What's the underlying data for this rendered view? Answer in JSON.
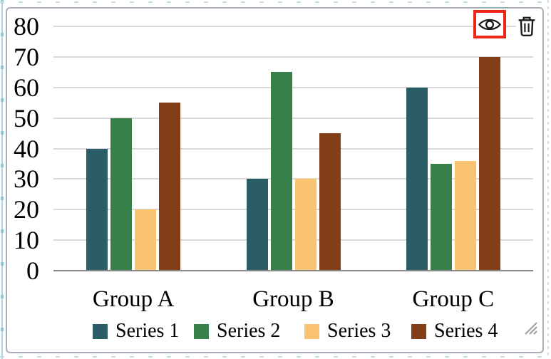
{
  "widget": {
    "name": "grouped-bar-chart",
    "toolbar": {
      "visibility_button": {
        "icon": "eye-icon",
        "highlighted": true,
        "highlight_color": "#ee2717"
      },
      "delete_button": {
        "icon": "trash-icon"
      }
    },
    "resize_handle": {
      "icon": "resize-grip-icon"
    }
  },
  "chart_data": {
    "type": "bar",
    "categories": [
      "Group A",
      "Group B",
      "Group C"
    ],
    "series": [
      {
        "name": "Series 1",
        "color": "#2b5d67",
        "values": [
          40,
          30,
          60
        ]
      },
      {
        "name": "Series 2",
        "color": "#37804a",
        "values": [
          50,
          65,
          35
        ]
      },
      {
        "name": "Series 3",
        "color": "#fac36f",
        "values": [
          20,
          30,
          36
        ]
      },
      {
        "name": "Series 4",
        "color": "#813e19",
        "values": [
          55,
          45,
          70
        ]
      }
    ],
    "ylim": [
      0,
      80
    ],
    "ytick_step": 10,
    "yticks": [
      0,
      10,
      20,
      30,
      40,
      50,
      60,
      70,
      80
    ],
    "grid": true,
    "legend_position": "bottom",
    "title": "",
    "xlabel": "",
    "ylabel": "",
    "axis_color": "#8a8a8a",
    "gridline_color": "#d9d9d9",
    "text_color": "#000000"
  }
}
